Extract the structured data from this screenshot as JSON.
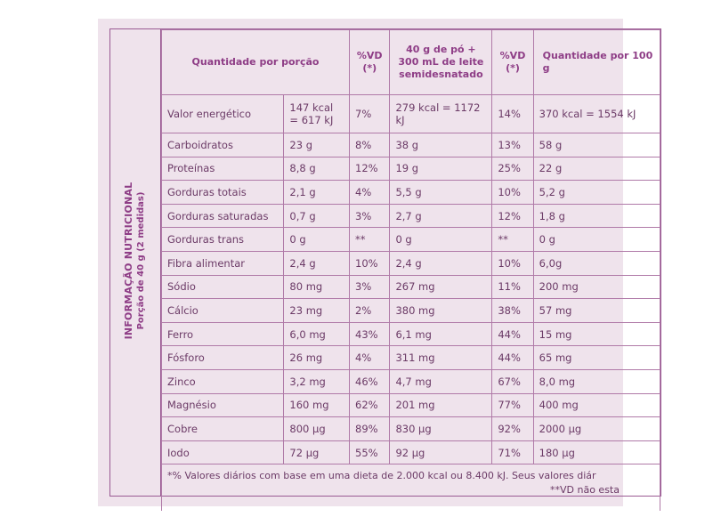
{
  "side_panel": {
    "title": "INFORMAÇÃO NUTRICIONAL",
    "subtitle": "Porção de 40 g (2 medidas)"
  },
  "table": {
    "headers": {
      "quantity": "Quantidade por porção",
      "vd1": "%VD (*)",
      "prepared": "40 g de pó + 300 mL de leite semidesnatado",
      "vd2": "%VD (*)",
      "per100": "Quantidade por 100 g"
    },
    "rows": [
      {
        "name": "Valor energético",
        "portion": "147 kcal = 617 kJ",
        "vd1": "7%",
        "prepared": "279 kcal = 1172 kJ",
        "vd2": "14%",
        "per100": "370 kcal = 1554 kJ"
      },
      {
        "name": "Carboidratos",
        "portion": "23 g",
        "vd1": "8%",
        "prepared": "38 g",
        "vd2": "13%",
        "per100": "58 g"
      },
      {
        "name": "Proteínas",
        "portion": "8,8 g",
        "vd1": "12%",
        "prepared": "19 g",
        "vd2": "25%",
        "per100": "22 g"
      },
      {
        "name": "Gorduras totais",
        "portion": "2,1 g",
        "vd1": "4%",
        "prepared": "5,5 g",
        "vd2": "10%",
        "per100": "5,2 g"
      },
      {
        "name": "Gorduras saturadas",
        "portion": "0,7 g",
        "vd1": "3%",
        "prepared": "2,7 g",
        "vd2": "12%",
        "per100": "1,8 g"
      },
      {
        "name": "Gorduras trans",
        "portion": "0 g",
        "vd1": "**",
        "prepared": "0 g",
        "vd2": "**",
        "per100": "0 g"
      },
      {
        "name": "Fibra alimentar",
        "portion": "2,4 g",
        "vd1": "10%",
        "prepared": "2,4 g",
        "vd2": "10%",
        "per100": "6,0g"
      },
      {
        "name": "Sódio",
        "portion": "80 mg",
        "vd1": "3%",
        "prepared": "267 mg",
        "vd2": "11%",
        "per100": "200 mg"
      },
      {
        "name": "Cálcio",
        "portion": "23 mg",
        "vd1": "2%",
        "prepared": "380 mg",
        "vd2": "38%",
        "per100": "57 mg"
      },
      {
        "name": "Ferro",
        "portion": "6,0 mg",
        "vd1": "43%",
        "prepared": "6,1 mg",
        "vd2": "44%",
        "per100": "15 mg"
      },
      {
        "name": "Fósforo",
        "portion": "26 mg",
        "vd1": "4%",
        "prepared": "311 mg",
        "vd2": "44%",
        "per100": "65 mg"
      },
      {
        "name": "Zinco",
        "portion": "3,2 mg",
        "vd1": "46%",
        "prepared": "4,7 mg",
        "vd2": "67%",
        "per100": "8,0 mg"
      },
      {
        "name": "Magnésio",
        "portion": "160 mg",
        "vd1": "62%",
        "prepared": "201 mg",
        "vd2": "77%",
        "per100": "400 mg"
      },
      {
        "name": "Cobre",
        "portion": "800 µg",
        "vd1": "89%",
        "prepared": "830 µg",
        "vd2": "92%",
        "per100": "2000 µg"
      },
      {
        "name": "Iodo",
        "portion": "72 µg",
        "vd1": "55%",
        "prepared": "92 µg",
        "vd2": "71%",
        "per100": "180 µg"
      }
    ],
    "footnote_1": "*% Valores diários com base em uma dieta de 2.000 kcal ou 8.400 kJ. Seus valores diár",
    "footnote_2": "**VD não esta"
  }
}
